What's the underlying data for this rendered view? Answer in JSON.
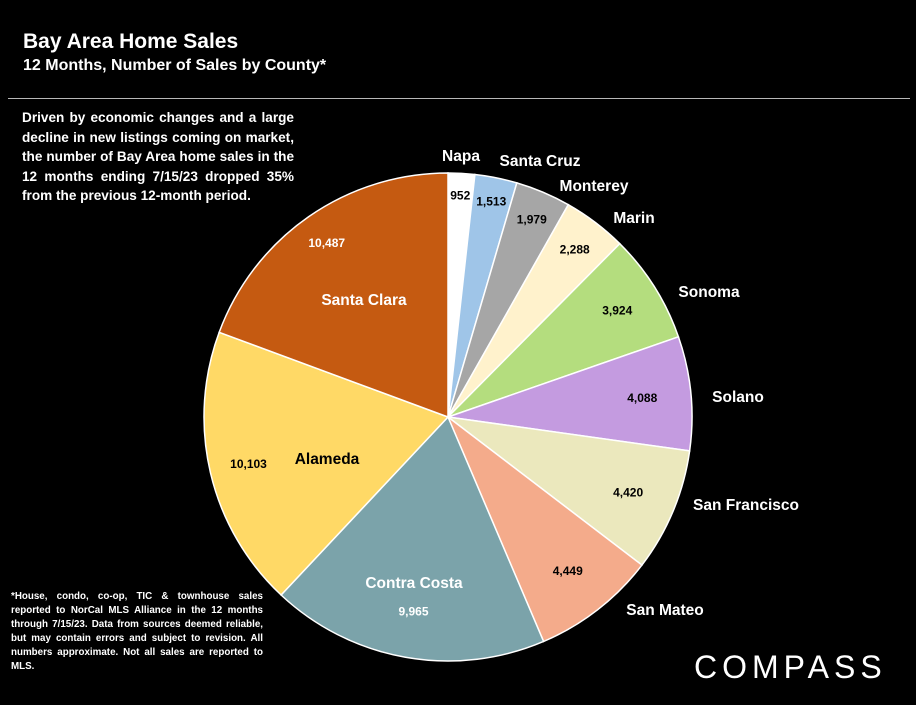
{
  "title": "Bay Area Home Sales",
  "subtitle": "12 Months, Number of Sales by County*",
  "description": "Driven by economic changes and a large decline in new listings coming on market, the number of Bay Area home sales in the 12 months ending 7/15/23 dropped 35% from the previous 12-month period.",
  "footnote": "*House, condo, co-op, TIC & townhouse sales reported to NorCal MLS Alliance in the 12 months through 7/15/23. Data from sources deemed reliable, but may contain errors and subject to revision. All numbers approximate. Not all sales are reported to MLS.",
  "logo": "COMPASS",
  "chart_data": {
    "type": "pie",
    "title": "Bay Area Home Sales",
    "subtitle": "12 Months, Number of Sales by County*",
    "start": "12 o'clock",
    "direction": "clockwise",
    "slices": [
      {
        "label": "Napa",
        "value": 952,
        "display": "952",
        "color": "#ffffff"
      },
      {
        "label": "Santa Cruz",
        "value": 1513,
        "display": "1,513",
        "color": "#9fc5e8"
      },
      {
        "label": "Monterey",
        "value": 1979,
        "display": "1,979",
        "color": "#a6a6a6"
      },
      {
        "label": "Marin",
        "value": 2288,
        "display": "2,288",
        "color": "#fff2cc"
      },
      {
        "label": "Sonoma",
        "value": 3924,
        "display": "3,924",
        "color": "#b4dd7e"
      },
      {
        "label": "Solano",
        "value": 4088,
        "display": "4,088",
        "color": "#c49be0"
      },
      {
        "label": "San Francisco",
        "value": 4420,
        "display": "4,420",
        "color": "#ebe8bd"
      },
      {
        "label": "San Mateo",
        "value": 4449,
        "display": "4,449",
        "color": "#f4ab8b"
      },
      {
        "label": "Contra Costa",
        "value": 9965,
        "display": "9,965",
        "color": "#7ba3aa"
      },
      {
        "label": "Alameda",
        "value": 10103,
        "display": "10,103",
        "color": "#ffd966"
      },
      {
        "label": "Santa Clara",
        "value": 10487,
        "display": "10,487",
        "color": "#c55a11"
      }
    ]
  }
}
